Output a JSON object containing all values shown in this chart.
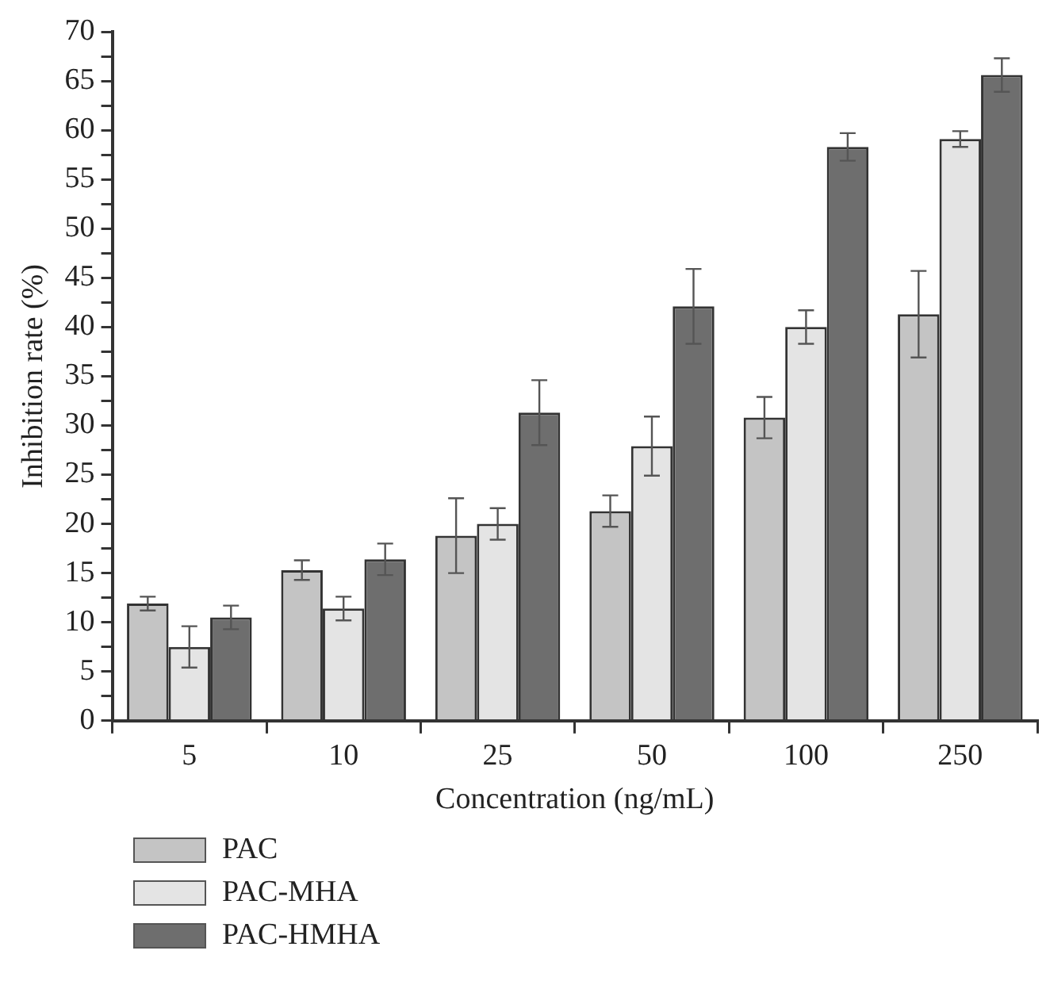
{
  "chart_data": {
    "type": "bar",
    "xlabel": "Concentration (ng/mL)",
    "ylabel": "Inhibition rate (%)",
    "categories": [
      "5",
      "10",
      "25",
      "50",
      "100",
      "250"
    ],
    "series": [
      {
        "name": "PAC",
        "color": "#c4c4c4",
        "values": [
          11.9,
          15.3,
          18.8,
          21.3,
          30.8,
          41.3
        ],
        "errors": [
          0.7,
          1.0,
          3.8,
          1.6,
          2.1,
          4.4
        ]
      },
      {
        "name": "PAC-MHA",
        "color": "#e4e4e4",
        "values": [
          7.5,
          11.4,
          20,
          27.9,
          40,
          59.1
        ],
        "errors": [
          2.1,
          1.2,
          1.6,
          3.0,
          1.7,
          0.8
        ]
      },
      {
        "name": "PAC-HMHA",
        "color": "#6e6e6e",
        "values": [
          10.5,
          16.4,
          31.3,
          42.1,
          58.3,
          65.6
        ],
        "errors": [
          1.2,
          1.6,
          3.3,
          3.8,
          1.4,
          1.7
        ]
      }
    ],
    "ylim": [
      0,
      70
    ],
    "yticks": [
      0,
      {
        "value": 2.5,
        "label": null
      },
      5,
      {
        "value": 7.5,
        "label": null
      },
      10,
      {
        "value": 12.5,
        "label": null
      },
      15,
      {
        "value": 17.5,
        "label": null
      },
      20,
      {
        "value": 22.5,
        "label": null
      },
      25,
      {
        "value": 27.5,
        "label": null
      },
      30,
      {
        "value": 32.5,
        "label": null
      },
      35,
      {
        "value": 37.5,
        "label": null
      },
      40,
      {
        "value": 42.5,
        "label": null
      },
      45,
      {
        "value": 47.5,
        "label": null
      },
      50,
      {
        "value": 52.5,
        "label": null
      },
      55,
      {
        "value": 57.5,
        "label": null
      },
      60,
      {
        "value": 62.5,
        "label": null
      },
      65,
      {
        "value": 67.5,
        "label": null
      },
      70
    ],
    "grid": false,
    "legend": "bottom left"
  }
}
